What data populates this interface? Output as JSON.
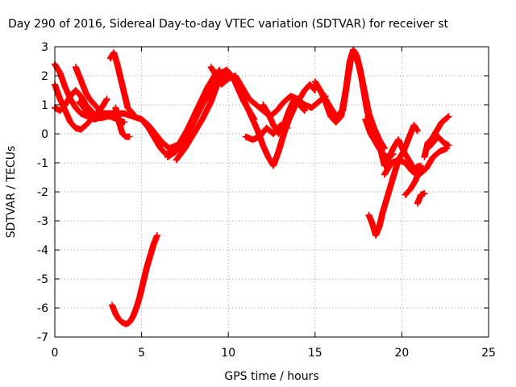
{
  "chart_data": {
    "type": "scatter",
    "title": "Day 290 of 2016, Sidereal Day-to-day VTEC variation (SDTVAR) for receiver st",
    "xlabel": "GPS time / hours",
    "ylabel": "SDTVAR / TECUs",
    "xlim": [
      0,
      25
    ],
    "ylim": [
      -7,
      3
    ],
    "xticks": [
      "0",
      "5",
      "10",
      "15",
      "20",
      "25"
    ],
    "yticks": [
      "3",
      "2",
      "1",
      "0",
      "-1",
      "-2",
      "-3",
      "-4",
      "-5",
      "-6",
      "-7"
    ],
    "grid": true,
    "marker": "plus",
    "color": "#ff0000",
    "series": [
      {
        "points": [
          [
            0.0,
            2.4
          ],
          [
            0.3,
            2.1
          ],
          [
            0.6,
            1.6
          ],
          [
            0.9,
            1.2
          ],
          [
            1.2,
            0.9
          ],
          [
            1.5,
            0.7
          ],
          [
            1.9,
            0.6
          ],
          [
            2.3,
            0.5
          ],
          [
            2.8,
            0.6
          ],
          [
            3.2,
            0.6
          ],
          [
            3.6,
            0.5
          ],
          [
            4.0,
            0.4
          ]
        ]
      },
      {
        "points": [
          [
            0.0,
            1.7
          ],
          [
            0.3,
            1.2
          ],
          [
            0.6,
            0.8
          ],
          [
            0.9,
            0.4
          ],
          [
            1.2,
            0.2
          ],
          [
            1.5,
            0.15
          ],
          [
            1.8,
            0.3
          ],
          [
            2.1,
            0.5
          ],
          [
            2.4,
            0.7
          ],
          [
            2.7,
            0.9
          ],
          [
            3.0,
            1.2
          ]
        ]
      },
      {
        "points": [
          [
            0.0,
            0.9
          ],
          [
            0.3,
            0.8
          ],
          [
            0.6,
            1.0
          ],
          [
            0.9,
            1.3
          ],
          [
            1.2,
            1.5
          ],
          [
            1.5,
            1.3
          ],
          [
            1.8,
            1.0
          ],
          [
            2.1,
            0.8
          ],
          [
            2.4,
            0.6
          ],
          [
            2.7,
            0.55
          ],
          [
            3.0,
            0.6
          ]
        ]
      },
      {
        "points": [
          [
            1.2,
            2.3
          ],
          [
            1.4,
            2.0
          ],
          [
            1.6,
            1.7
          ],
          [
            1.8,
            1.4
          ],
          [
            2.0,
            1.2
          ],
          [
            2.3,
            1.0
          ],
          [
            2.6,
            0.8
          ],
          [
            2.9,
            0.6
          ]
        ]
      },
      {
        "points": [
          [
            1.4,
            1.1
          ],
          [
            1.8,
            0.8
          ],
          [
            2.2,
            0.6
          ],
          [
            2.6,
            0.7
          ],
          [
            3.0,
            0.7
          ],
          [
            3.5,
            0.7
          ],
          [
            4.0,
            0.7
          ],
          [
            4.5,
            0.6
          ],
          [
            5.0,
            0.5
          ],
          [
            5.4,
            0.3
          ],
          [
            5.8,
            0.0
          ],
          [
            6.2,
            -0.3
          ],
          [
            6.6,
            -0.5
          ],
          [
            7.0,
            -0.4
          ]
        ]
      },
      {
        "points": [
          [
            3.2,
            2.6
          ],
          [
            3.4,
            2.8
          ],
          [
            3.6,
            2.4
          ],
          [
            3.8,
            1.9
          ],
          [
            4.0,
            1.4
          ],
          [
            4.2,
            0.9
          ],
          [
            4.5,
            0.7
          ]
        ]
      },
      {
        "points": [
          [
            3.5,
            0.9
          ],
          [
            3.7,
            0.4
          ],
          [
            3.9,
            0.0
          ],
          [
            4.1,
            -0.1
          ],
          [
            4.3,
            -0.1
          ]
        ]
      },
      {
        "points": [
          [
            3.3,
            -5.9
          ],
          [
            3.5,
            -6.2
          ],
          [
            3.7,
            -6.4
          ],
          [
            3.9,
            -6.5
          ],
          [
            4.1,
            -6.55
          ],
          [
            4.3,
            -6.5
          ],
          [
            4.5,
            -6.3
          ],
          [
            4.7,
            -6.0
          ],
          [
            4.9,
            -5.6
          ],
          [
            5.1,
            -5.1
          ],
          [
            5.3,
            -4.6
          ],
          [
            5.5,
            -4.2
          ],
          [
            5.7,
            -3.8
          ],
          [
            5.9,
            -3.5
          ]
        ]
      },
      {
        "points": [
          [
            5.0,
            0.5
          ],
          [
            5.4,
            0.2
          ],
          [
            5.8,
            -0.2
          ],
          [
            6.1,
            -0.5
          ],
          [
            6.4,
            -0.7
          ],
          [
            6.8,
            -0.6
          ],
          [
            7.2,
            -0.3
          ],
          [
            7.6,
            0.1
          ],
          [
            8.0,
            0.6
          ],
          [
            8.4,
            1.1
          ],
          [
            8.8,
            1.6
          ],
          [
            9.2,
            2.0
          ],
          [
            9.5,
            2.2
          ]
        ]
      },
      {
        "points": [
          [
            6.5,
            -0.8
          ],
          [
            7.0,
            -0.6
          ],
          [
            7.5,
            -0.2
          ],
          [
            8.0,
            0.4
          ],
          [
            8.5,
            1.0
          ],
          [
            9.0,
            1.5
          ],
          [
            9.5,
            1.9
          ],
          [
            10.0,
            2.0
          ],
          [
            10.3,
            1.9
          ],
          [
            10.6,
            1.5
          ],
          [
            10.9,
            1.1
          ],
          [
            11.2,
            0.8
          ],
          [
            11.5,
            0.5
          ]
        ]
      },
      {
        "points": [
          [
            7.0,
            -0.9
          ],
          [
            7.5,
            -0.5
          ],
          [
            8.0,
            0.0
          ],
          [
            8.5,
            0.5
          ],
          [
            9.0,
            1.1
          ],
          [
            9.3,
            1.6
          ],
          [
            9.6,
            2.1
          ],
          [
            9.9,
            2.2
          ],
          [
            10.2,
            2.0
          ]
        ]
      },
      {
        "points": [
          [
            9.0,
            2.3
          ],
          [
            9.3,
            2.0
          ],
          [
            9.6,
            1.7
          ],
          [
            10.0,
            1.9
          ],
          [
            10.4,
            2.0
          ],
          [
            10.8,
            1.6
          ],
          [
            11.2,
            1.2
          ],
          [
            11.6,
            1.0
          ],
          [
            12.0,
            0.8
          ],
          [
            12.4,
            0.6
          ],
          [
            12.8,
            0.8
          ],
          [
            13.2,
            1.1
          ],
          [
            13.6,
            1.3
          ],
          [
            14.0,
            1.2
          ],
          [
            14.4,
            1.0
          ],
          [
            14.8,
            0.9
          ],
          [
            15.2,
            1.1
          ],
          [
            15.6,
            1.3
          ]
        ]
      },
      {
        "points": [
          [
            10.8,
            1.3
          ],
          [
            11.1,
            0.9
          ],
          [
            11.4,
            0.5
          ],
          [
            11.7,
            0.1
          ],
          [
            12.0,
            -0.4
          ],
          [
            12.3,
            -0.8
          ],
          [
            12.6,
            -1.1
          ],
          [
            12.9,
            -0.6
          ],
          [
            13.2,
            0.0
          ],
          [
            13.5,
            0.5
          ],
          [
            13.8,
            0.9
          ],
          [
            14.1,
            1.2
          ],
          [
            14.4,
            1.5
          ],
          [
            14.7,
            1.7
          ],
          [
            15.0,
            1.5
          ]
        ]
      },
      {
        "points": [
          [
            11.0,
            -0.1
          ],
          [
            11.4,
            -0.2
          ],
          [
            11.8,
            -0.1
          ],
          [
            12.2,
            0.2
          ],
          [
            12.6,
            0.0
          ],
          [
            13.0,
            0.3
          ],
          [
            13.4,
            0.2
          ]
        ]
      },
      {
        "points": [
          [
            12.0,
            1.0
          ],
          [
            12.3,
            0.7
          ],
          [
            12.6,
            0.3
          ],
          [
            12.9,
            0.0
          ],
          [
            13.2,
            0.3
          ],
          [
            13.5,
            0.8
          ],
          [
            13.8,
            1.2
          ],
          [
            14.1,
            1.0
          ],
          [
            14.4,
            0.8
          ]
        ]
      },
      {
        "points": [
          [
            15.0,
            1.8
          ],
          [
            15.3,
            1.5
          ],
          [
            15.6,
            1.1
          ],
          [
            15.9,
            0.6
          ],
          [
            16.2,
            0.4
          ],
          [
            16.5,
            0.6
          ],
          [
            16.8,
            1.6
          ],
          [
            17.0,
            2.5
          ],
          [
            17.2,
            2.9
          ],
          [
            17.4,
            2.7
          ],
          [
            17.6,
            2.2
          ],
          [
            17.8,
            1.5
          ],
          [
            18.0,
            0.8
          ],
          [
            18.3,
            0.1
          ],
          [
            18.6,
            -0.4
          ],
          [
            18.9,
            -0.7
          ],
          [
            19.2,
            -0.8
          ],
          [
            19.5,
            -0.7
          ]
        ]
      },
      {
        "points": [
          [
            15.4,
            1.4
          ],
          [
            15.8,
            1.0
          ],
          [
            16.2,
            0.6
          ],
          [
            16.6,
            0.8
          ],
          [
            16.9,
            2.0
          ],
          [
            17.1,
            2.7
          ],
          [
            17.3,
            2.8
          ],
          [
            17.5,
            2.4
          ],
          [
            17.7,
            1.9
          ],
          [
            17.9,
            1.3
          ],
          [
            18.1,
            0.7
          ],
          [
            18.4,
            0.2
          ],
          [
            18.7,
            -0.2
          ],
          [
            19.0,
            -0.5
          ]
        ]
      },
      {
        "points": [
          [
            17.9,
            0.5
          ],
          [
            18.2,
            0.0
          ],
          [
            18.5,
            -0.3
          ],
          [
            18.8,
            -0.6
          ],
          [
            19.0,
            -1.1
          ],
          [
            19.2,
            -0.9
          ],
          [
            19.5,
            -0.5
          ],
          [
            19.8,
            -0.2
          ],
          [
            20.1,
            -0.6
          ],
          [
            20.4,
            -0.9
          ],
          [
            20.7,
            -1.2
          ],
          [
            21.0,
            -1.1
          ]
        ]
      },
      {
        "points": [
          [
            18.1,
            -2.8
          ],
          [
            18.3,
            -3.1
          ],
          [
            18.5,
            -3.5
          ],
          [
            18.7,
            -3.2
          ],
          [
            18.9,
            -2.7
          ],
          [
            19.1,
            -2.3
          ],
          [
            19.3,
            -1.9
          ],
          [
            19.5,
            -1.5
          ],
          [
            19.7,
            -1.1
          ],
          [
            19.9,
            -0.8
          ],
          [
            20.1,
            -0.6
          ],
          [
            20.3,
            -0.3
          ],
          [
            20.5,
            0.0
          ],
          [
            20.7,
            0.3
          ],
          [
            20.9,
            0.1
          ]
        ]
      },
      {
        "points": [
          [
            19.0,
            -1.4
          ],
          [
            19.4,
            -1.0
          ],
          [
            19.8,
            -0.9
          ],
          [
            20.2,
            -1.0
          ],
          [
            20.6,
            -1.3
          ],
          [
            21.0,
            -1.4
          ],
          [
            21.4,
            -1.2
          ],
          [
            21.8,
            -0.8
          ],
          [
            22.2,
            -0.6
          ],
          [
            22.6,
            -0.5
          ]
        ]
      },
      {
        "points": [
          [
            20.2,
            -2.1
          ],
          [
            20.5,
            -1.9
          ],
          [
            20.8,
            -1.6
          ],
          [
            21.1,
            -1.1
          ]
        ]
      },
      {
        "points": [
          [
            20.9,
            -2.4
          ],
          [
            21.1,
            -2.1
          ],
          [
            21.3,
            -2.05
          ]
        ]
      },
      {
        "points": [
          [
            21.3,
            -0.8
          ],
          [
            21.5,
            -0.3
          ],
          [
            21.7,
            -0.2
          ],
          [
            21.9,
            0.0
          ],
          [
            22.1,
            0.2
          ],
          [
            22.3,
            0.4
          ],
          [
            22.5,
            0.5
          ],
          [
            22.7,
            0.6
          ]
        ]
      },
      {
        "points": [
          [
            21.5,
            -0.5
          ],
          [
            21.8,
            -0.3
          ],
          [
            22.1,
            -0.1
          ],
          [
            22.4,
            -0.3
          ],
          [
            22.7,
            -0.4
          ]
        ]
      }
    ]
  }
}
